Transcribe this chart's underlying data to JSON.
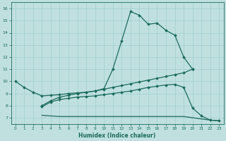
{
  "xlabel": "Humidex (Indice chaleur)",
  "bg_color": "#c0e0e0",
  "grid_color": "#a0cccc",
  "line_color": "#1a6b5a",
  "xlim": [
    -0.5,
    23.5
  ],
  "ylim": [
    6.5,
    16.5
  ],
  "xticks": [
    0,
    1,
    2,
    3,
    4,
    5,
    6,
    7,
    8,
    9,
    10,
    11,
    12,
    13,
    14,
    15,
    16,
    17,
    18,
    19,
    20,
    21,
    22,
    23
  ],
  "yticks": [
    7,
    8,
    9,
    10,
    11,
    12,
    13,
    14,
    15,
    16
  ],
  "series": [
    {
      "x": [
        3,
        4,
        5,
        6,
        7,
        8,
        9,
        10,
        11,
        12,
        13,
        14,
        15,
        16,
        17,
        18,
        19,
        20
      ],
      "y": [
        8.0,
        8.4,
        8.7,
        8.85,
        9.0,
        9.1,
        9.2,
        9.4,
        11.0,
        13.35,
        15.75,
        15.45,
        14.7,
        14.8,
        14.2,
        13.8,
        12.0,
        11.0
      ],
      "has_markers": true
    },
    {
      "x": [
        0,
        1,
        2,
        3,
        4,
        5,
        6,
        7,
        8,
        9,
        10,
        11,
        12,
        13,
        14,
        15,
        16,
        17,
        18,
        19,
        20
      ],
      "y": [
        10.0,
        9.5,
        9.1,
        8.8,
        8.85,
        8.9,
        9.0,
        9.05,
        9.1,
        9.2,
        9.35,
        9.5,
        9.65,
        9.8,
        9.95,
        10.1,
        10.25,
        10.4,
        10.55,
        10.7,
        11.0
      ],
      "has_markers": true
    },
    {
      "x": [
        3,
        4,
        5,
        6,
        7,
        8,
        9,
        10,
        11,
        12,
        13,
        14,
        15,
        16,
        17,
        18,
        19,
        20,
        21,
        22,
        23
      ],
      "y": [
        7.9,
        8.3,
        8.5,
        8.6,
        8.7,
        8.75,
        8.8,
        8.9,
        9.0,
        9.1,
        9.2,
        9.35,
        9.5,
        9.6,
        9.7,
        9.75,
        9.5,
        7.8,
        7.15,
        6.8,
        6.75
      ],
      "has_markers": true
    },
    {
      "x": [
        3,
        4,
        5,
        6,
        7,
        8,
        9,
        10,
        11,
        12,
        13,
        14,
        15,
        16,
        17,
        18,
        19,
        20,
        21,
        22,
        23
      ],
      "y": [
        7.2,
        7.15,
        7.1,
        7.1,
        7.1,
        7.1,
        7.1,
        7.1,
        7.1,
        7.1,
        7.1,
        7.1,
        7.1,
        7.1,
        7.1,
        7.1,
        7.1,
        7.0,
        6.9,
        6.8,
        6.75
      ],
      "has_markers": false
    }
  ]
}
